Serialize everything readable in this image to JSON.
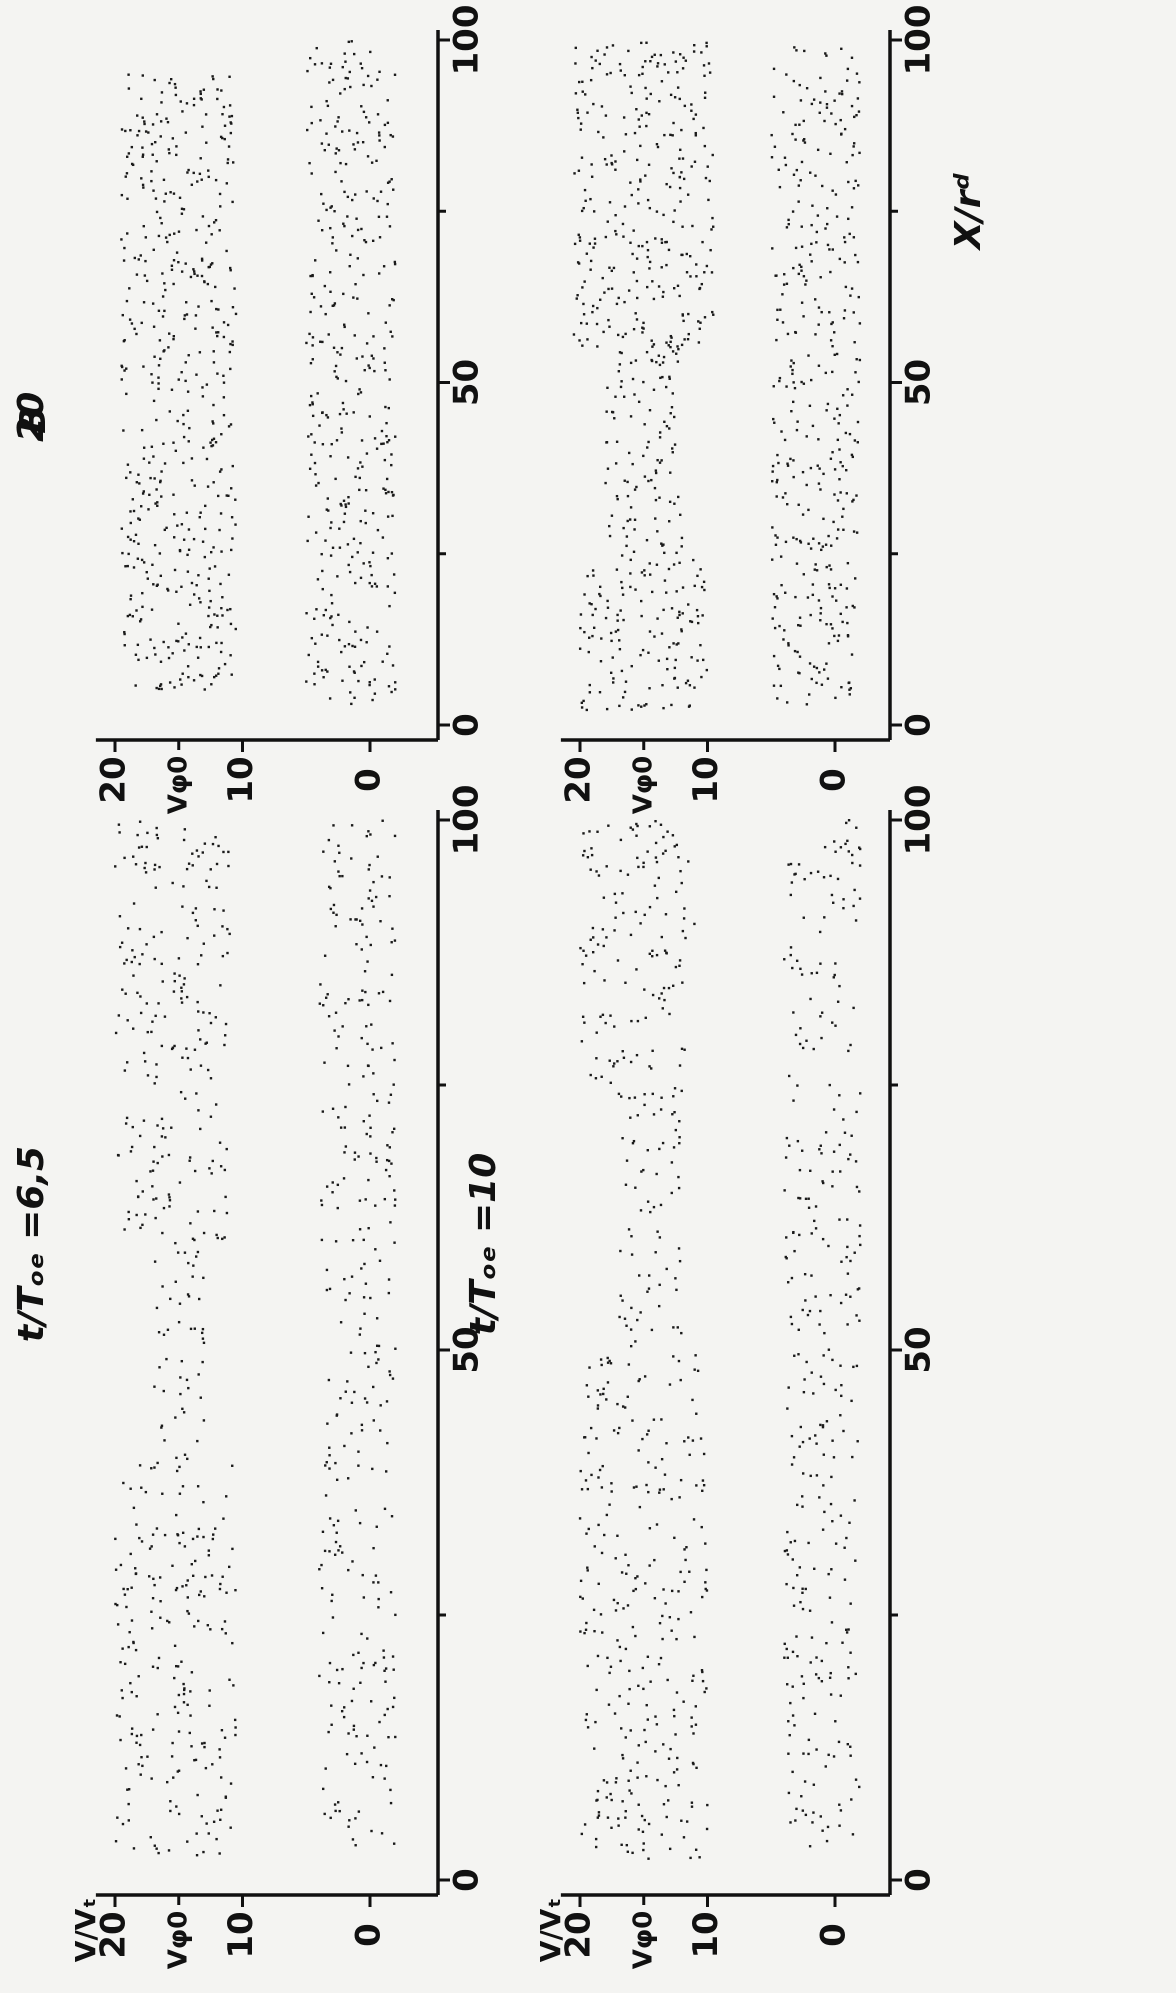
{
  "figure": {
    "panels": [
      {
        "title": "t/Tₒₑ =6,5",
        "ylabel_v": "V",
        "ylabel_vt": "Vₜ",
        "ylabel_v0": "Vφ0",
        "xlabel": ""
      },
      {
        "title": "t/Tₒₑ =10",
        "ylabel_v": "V",
        "ylabel_vt": "Vₜ",
        "ylabel_v0": "Vφ0",
        "xlabel": ""
      },
      {
        "title": "20",
        "ylabel_v": "",
        "ylabel_vt": "",
        "ylabel_v0": "Vφ0",
        "xlabel": "",
        "corner_letter": "B"
      },
      {
        "title": "",
        "ylabel_v": "",
        "ylabel_vt": "",
        "ylabel_v0": "Vφ0",
        "xlabel": "X/rᵈ"
      }
    ]
  },
  "chart_data": [
    {
      "type": "scatter",
      "title": "t/Tₒₑ =6,5",
      "xlabel": "",
      "ylabel": "V/Vₜ",
      "xlim": [
        0,
        100
      ],
      "ylim": [
        -3,
        21
      ],
      "x_ticks": [
        "0",
        "50",
        "100"
      ],
      "y_ticks": [
        "0",
        "10",
        "20"
      ],
      "y_marker": "Vφ0",
      "series": [
        {
          "band": "beam",
          "regions": [
            {
              "x": [
                2,
                40
              ],
              "y": [
                10.5,
                20
              ]
            },
            {
              "x": [
                40,
                60
              ],
              "y": [
                13,
                17
              ]
            },
            {
              "x": [
                60,
                100
              ],
              "y": [
                11,
                20
              ]
            }
          ]
        },
        {
          "band": "plasma",
          "regions": [
            {
              "x": [
                3,
                100
              ],
              "y": [
                -2,
                4
              ]
            }
          ]
        }
      ],
      "grid": false,
      "legend": "none"
    },
    {
      "type": "scatter",
      "title": "t/Tₒₑ =10",
      "xlabel": "",
      "ylabel": "V/Vₜ",
      "xlim": [
        0,
        100
      ],
      "ylim": [
        -3,
        21
      ],
      "x_ticks": [
        "0",
        "50",
        "100"
      ],
      "y_ticks": [
        "0",
        "10",
        "20"
      ],
      "y_marker": "Vφ0",
      "series": [
        {
          "band": "beam",
          "regions": [
            {
              "x": [
                2,
                50
              ],
              "y": [
                10,
                20
              ]
            },
            {
              "x": [
                50,
                75
              ],
              "y": [
                12,
                17
              ]
            },
            {
              "x": [
                75,
                100
              ],
              "y": [
                11,
                20
              ]
            }
          ]
        },
        {
          "band": "plasma",
          "regions": [
            {
              "x": [
                3,
                100
              ],
              "y": [
                -2,
                4
              ]
            }
          ]
        }
      ],
      "grid": false,
      "legend": "none"
    },
    {
      "type": "scatter",
      "title": "20",
      "xlabel": "",
      "ylabel": "",
      "xlim": [
        0,
        100
      ],
      "ylim": [
        -3,
        21
      ],
      "x_ticks": [
        "0",
        "50",
        "100"
      ],
      "y_ticks": [
        "0",
        "10",
        "20"
      ],
      "y_marker": "Vφ0",
      "series": [
        {
          "band": "beam",
          "regions": [
            {
              "x": [
                5,
                95
              ],
              "y": [
                10.5,
                19.5
              ]
            }
          ]
        },
        {
          "band": "plasma",
          "regions": [
            {
              "x": [
                3,
                100
              ],
              "y": [
                -2,
                5
              ]
            }
          ]
        }
      ],
      "grid": false,
      "legend": "none"
    },
    {
      "type": "scatter",
      "title": "",
      "xlabel": "X/rᵈ",
      "ylabel": "",
      "xlim": [
        0,
        100
      ],
      "ylim": [
        -3,
        21
      ],
      "x_ticks": [
        "0",
        "50",
        "100"
      ],
      "y_ticks": [
        "0",
        "10",
        "20"
      ],
      "y_marker": "Vφ0",
      "series": [
        {
          "band": "beam",
          "regions": [
            {
              "x": [
                2,
                25
              ],
              "y": [
                10,
                20
              ]
            },
            {
              "x": [
                25,
                55
              ],
              "y": [
                12,
                18
              ]
            },
            {
              "x": [
                55,
                100
              ],
              "y": [
                9.5,
                20.5
              ]
            }
          ]
        },
        {
          "band": "plasma",
          "regions": [
            {
              "x": [
                3,
                100
              ],
              "y": [
                -2,
                5
              ]
            }
          ]
        }
      ],
      "grid": false,
      "legend": "none"
    }
  ]
}
